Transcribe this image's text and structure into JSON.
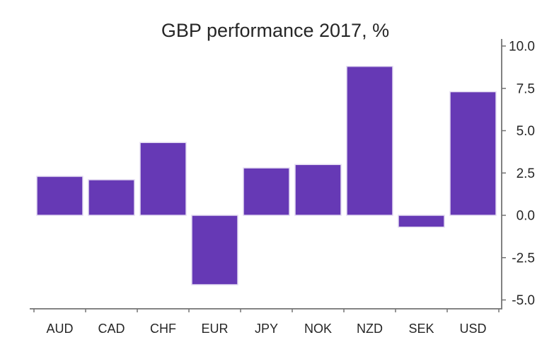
{
  "chart_data": {
    "type": "bar",
    "title": "GBP performance 2017, %",
    "categories": [
      "AUD",
      "CAD",
      "CHF",
      "EUR",
      "JPY",
      "NOK",
      "NZD",
      "SEK",
      "USD"
    ],
    "values": [
      2.3,
      2.1,
      4.3,
      -4.1,
      2.8,
      3.0,
      8.8,
      -0.7,
      7.3
    ],
    "xlabel": "",
    "ylabel": "",
    "ylim": [
      -5.5,
      10.4
    ],
    "yticks": [
      10.0,
      7.5,
      5.0,
      2.5,
      0.0,
      -2.5,
      -5.0
    ],
    "ytick_labels": [
      "10.0",
      "7.5",
      "5.0",
      "2.5",
      "0.0",
      "-2.5",
      "-5.0"
    ],
    "yaxis_side": "right",
    "grid": false,
    "legend": "none",
    "colors": {
      "bar_fill": "#6639B5",
      "bar_edge": "#E4DCF2",
      "axis": "#737373",
      "text": "#262626"
    }
  }
}
